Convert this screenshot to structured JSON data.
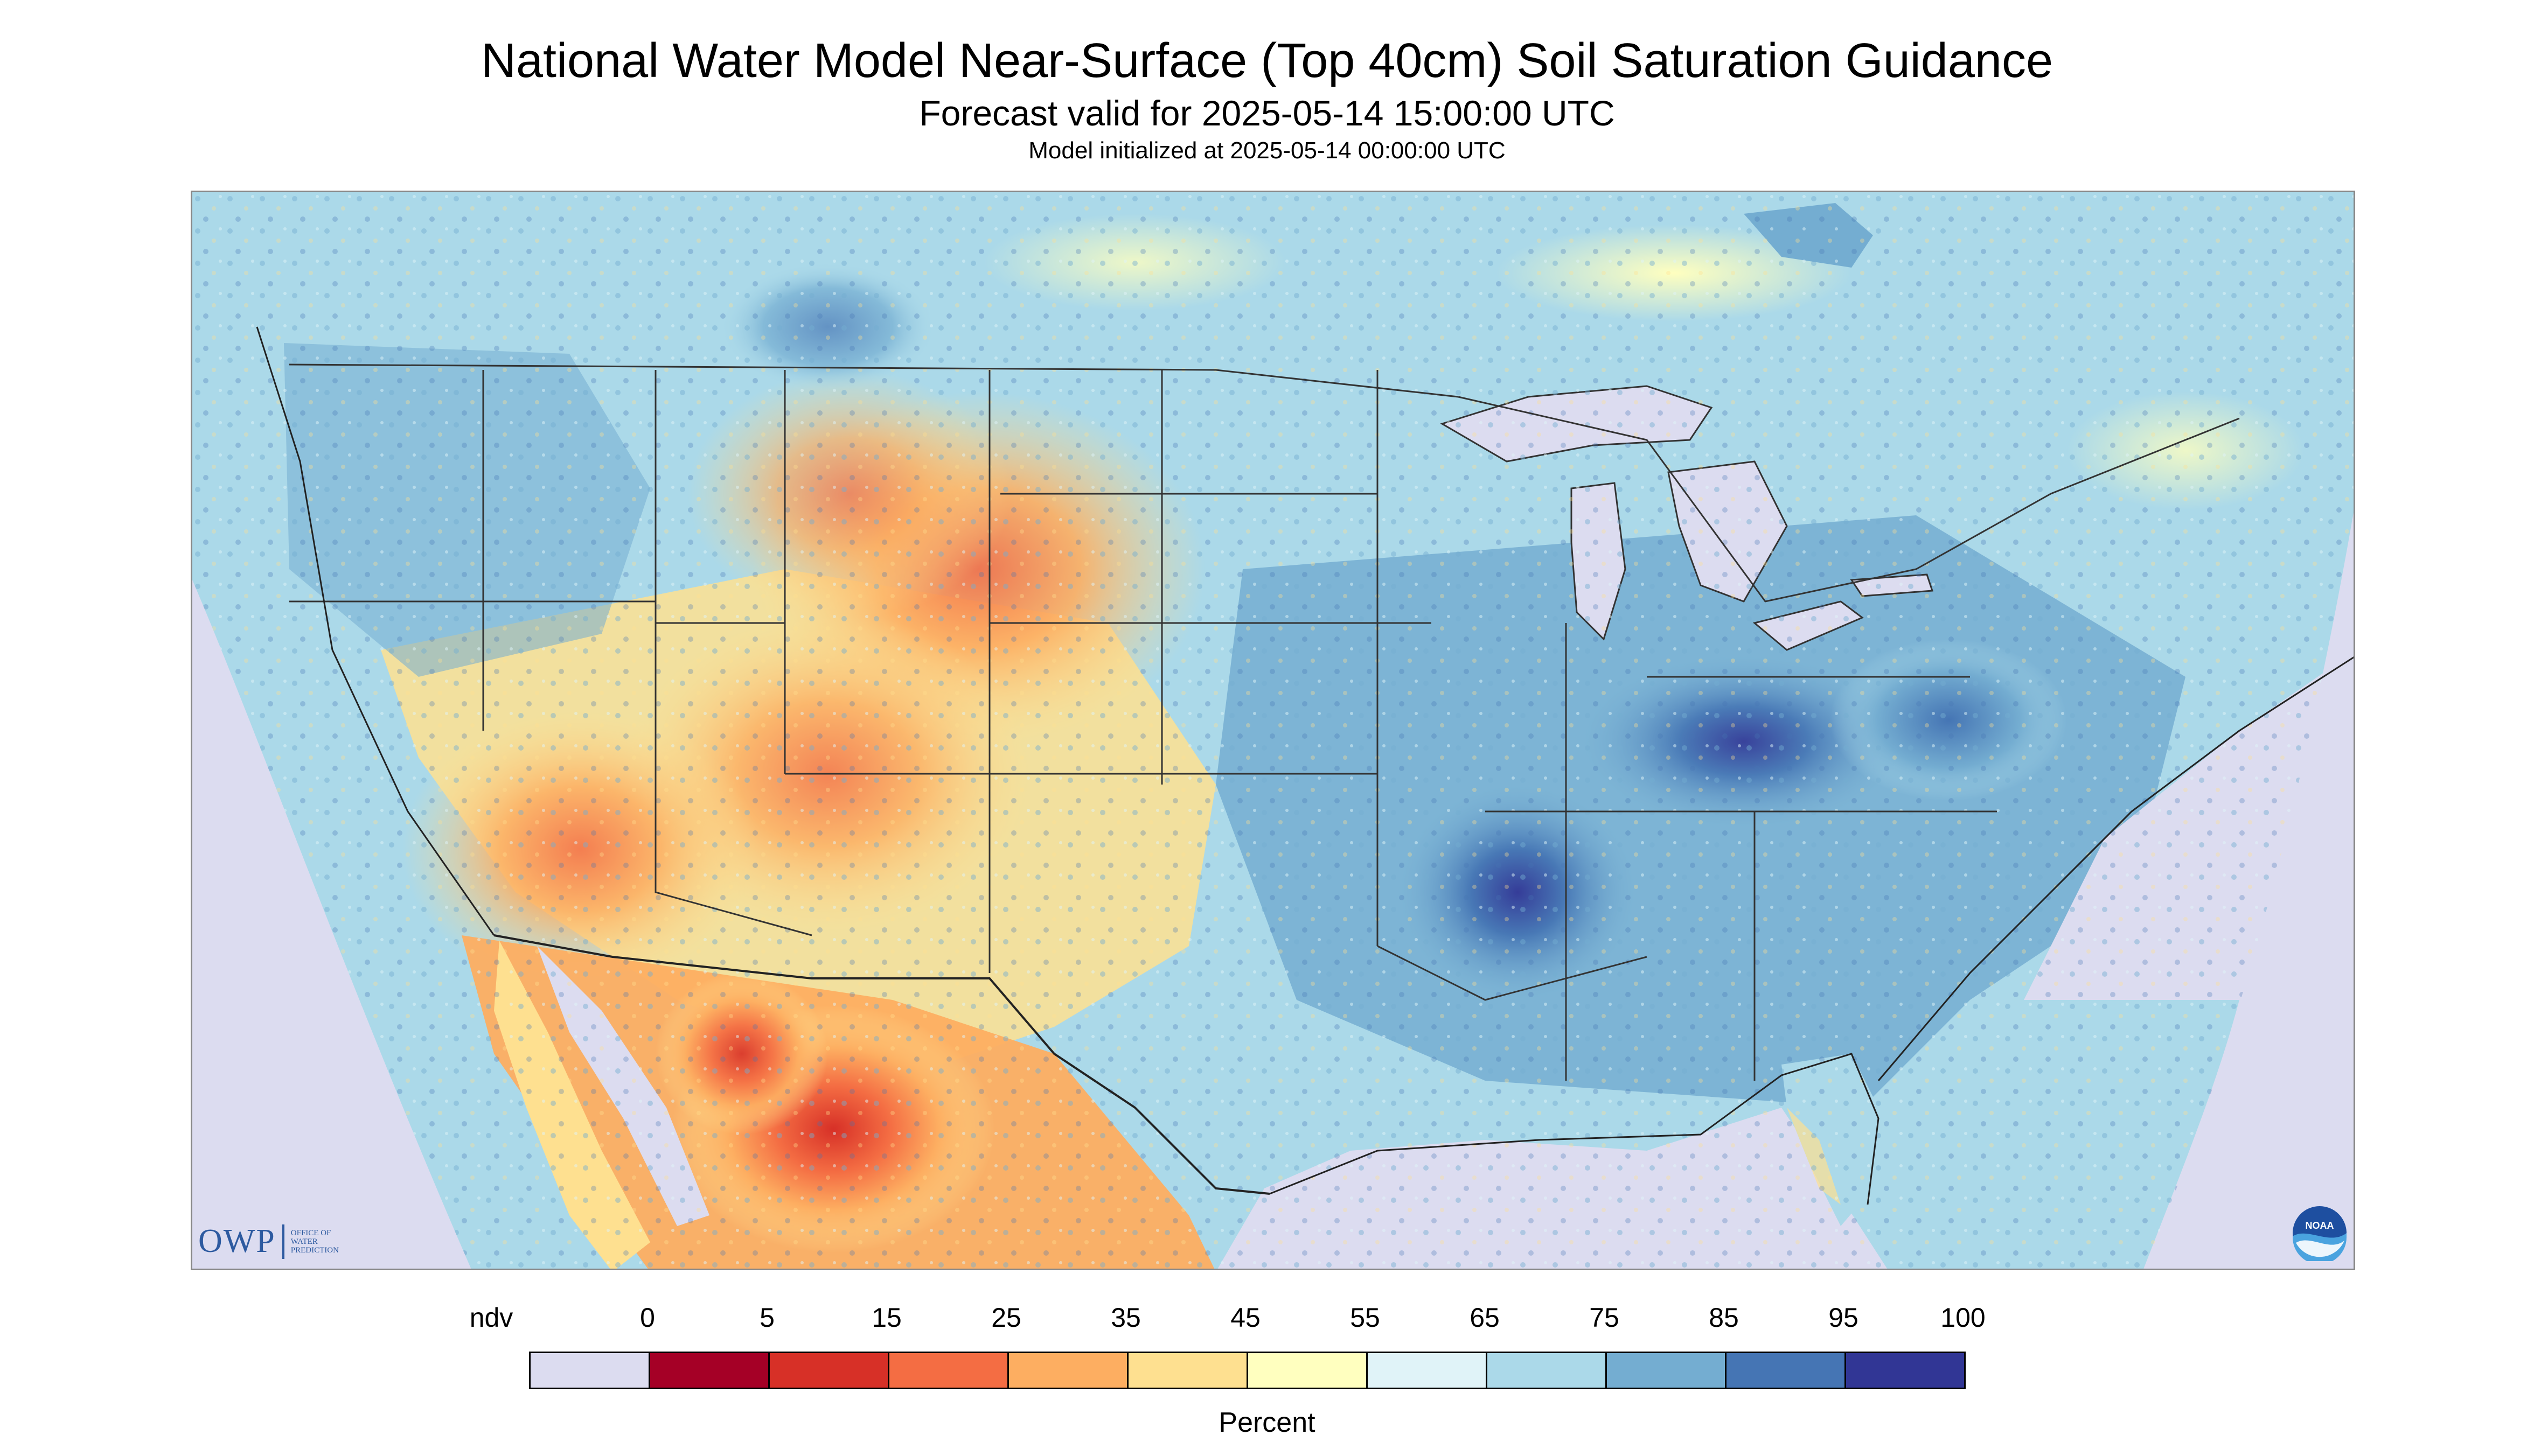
{
  "header": {
    "title": "National Water Model Near-Surface (Top 40cm) Soil Saturation Guidance",
    "subtitle": "Forecast valid for 2025-05-14 15:00:00 UTC",
    "init_line": "Model initialized at 2025-05-14 00:00:00 UTC"
  },
  "map": {
    "nodata_color": "#dcdcf0",
    "water_color": "#dcdcf0",
    "boundary_color": "#333333"
  },
  "logos": {
    "owp_text": "OWP",
    "owp_subtext": [
      "OFFICE OF",
      "WATER",
      "PREDICTION"
    ],
    "noaa_text": "NOAA"
  },
  "legend": {
    "tick_labels": [
      "ndv",
      "0",
      "5",
      "15",
      "25",
      "35",
      "45",
      "55",
      "65",
      "75",
      "85",
      "95",
      "100"
    ],
    "colors": [
      "#dcdcf0",
      "#a50026",
      "#d73027",
      "#f46d43",
      "#fdae61",
      "#fee090",
      "#ffffbf",
      "#e0f3f8",
      "#abd9e9",
      "#74add1",
      "#4575b4",
      "#313695"
    ],
    "label": "Percent"
  }
}
